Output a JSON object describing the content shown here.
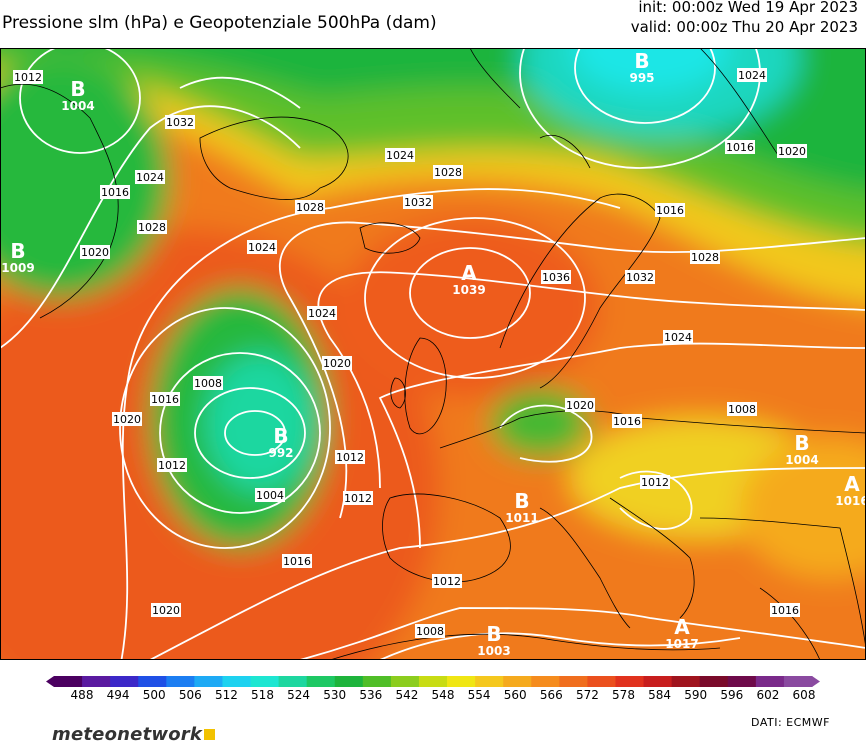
{
  "header": {
    "title": "Pressione slm (hPa) e Geopotenziale 500hPa (dam)",
    "init": "init: 00:00z Wed 19 Apr 2023",
    "valid": "valid: 00:00z Thu 20 Apr 2023"
  },
  "colorbar": {
    "colors": [
      "#4b0060",
      "#5a1aa0",
      "#3c28c8",
      "#1f50e6",
      "#1c7ef2",
      "#1eaaf5",
      "#1ed2f0",
      "#1ee6d2",
      "#1ed7a0",
      "#1ec864",
      "#1eb43c",
      "#50be28",
      "#8ccd1e",
      "#c8dc14",
      "#f0e614",
      "#f5c81e",
      "#f5aa1e",
      "#f58c1e",
      "#f06e1e",
      "#eb501e",
      "#e1321e",
      "#c81e1e",
      "#a0141e",
      "#7a0a2a",
      "#6e0a4a",
      "#7a2a8a",
      "#8a4aa0"
    ],
    "labels": [
      "488",
      "494",
      "500",
      "506",
      "512",
      "518",
      "524",
      "530",
      "536",
      "542",
      "548",
      "554",
      "560",
      "566",
      "572",
      "578",
      "584",
      "590",
      "596",
      "602",
      "608"
    ]
  },
  "centers": [
    {
      "letter": "B",
      "value": "1004"
    },
    {
      "letter": "B",
      "value": "995"
    },
    {
      "letter": "B",
      "value": "992"
    },
    {
      "letter": "A",
      "value": "1039"
    },
    {
      "letter": "B",
      "value": "1004"
    },
    {
      "letter": "A",
      "value": "1016"
    },
    {
      "letter": "B",
      "value": "1011"
    },
    {
      "letter": "B",
      "value": "1003"
    },
    {
      "letter": "A",
      "value": "1017"
    },
    {
      "letter": "B",
      "value": "1009"
    }
  ],
  "isobar_labels": [
    "1012",
    "1032",
    "1024",
    "1016",
    "1028",
    "1020",
    "1024",
    "1028",
    "1032",
    "1028",
    "1024",
    "1016",
    "1024",
    "1020",
    "1016",
    "1036",
    "1032",
    "1024",
    "1020",
    "1008",
    "1016",
    "1012",
    "1004",
    "1012",
    "1020",
    "1028",
    "1024",
    "1008",
    "1016",
    "1012",
    "1012",
    "1016",
    "1020",
    "1012",
    "1008",
    "1016",
    "1020"
  ],
  "footer": {
    "logo": "meteonetwork",
    "credits": "DATI:  ECMWF"
  }
}
